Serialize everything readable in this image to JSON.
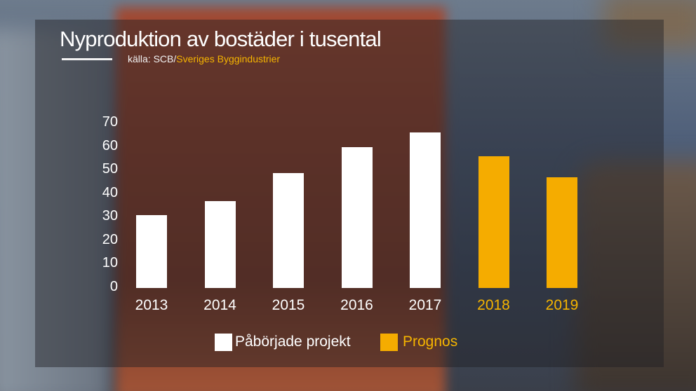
{
  "header": {
    "title": "Nyproduktion av bostäder i tusental",
    "source_prefix": "källa: SCB/",
    "source_accent": "Sveriges Byggindustrier"
  },
  "colors": {
    "actual": "#ffffff",
    "forecast": "#f5ac00",
    "forecast_text": "#f5b400"
  },
  "legend": {
    "actual_label": "Påbörjade projekt",
    "forecast_label": "Prognos"
  },
  "chart_data": {
    "type": "bar",
    "title": "Nyproduktion av bostäder i tusental",
    "subtitle": "källa: SCB/Sveriges Byggindustrier",
    "xlabel": "",
    "ylabel": "",
    "categories": [
      "2013",
      "2014",
      "2015",
      "2016",
      "2017",
      "2018",
      "2019"
    ],
    "series": [
      {
        "name": "Påbörjade projekt",
        "values": [
          31,
          37,
          49,
          60,
          66,
          null,
          null
        ]
      },
      {
        "name": "Prognos",
        "values": [
          null,
          null,
          null,
          null,
          null,
          56,
          47
        ]
      }
    ],
    "yticks": [
      "0",
      "10",
      "20",
      "30",
      "40",
      "50",
      "60",
      "70"
    ],
    "ylim": [
      0,
      70
    ],
    "grid": false,
    "legend_position": "bottom"
  }
}
